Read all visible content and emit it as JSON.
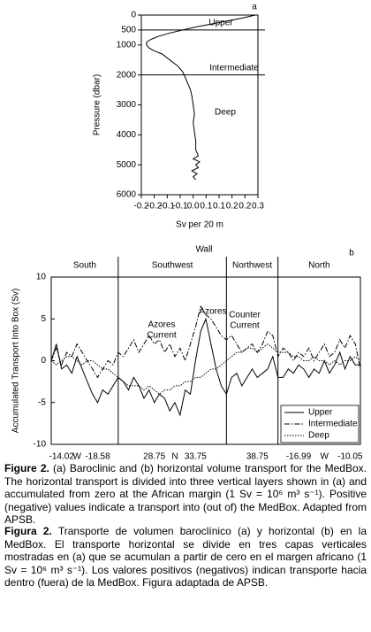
{
  "chart_data": [
    {
      "type": "profile",
      "panel": "a",
      "ylabel": "Pressure (dbar)",
      "xlabel": "Sv per 20 m",
      "xlim": [
        -0.2,
        0.25
      ],
      "xticks": [
        {
          "value": -0.2,
          "label": "-0.2"
        },
        {
          "value": -0.15,
          "label": "-0.2"
        },
        {
          "value": -0.1,
          "label": "-0.1"
        },
        {
          "value": -0.05,
          "label": "-0.1"
        },
        {
          "value": 0,
          "label": "0.0"
        },
        {
          "value": 0.05,
          "label": "0.1"
        },
        {
          "value": 0.1,
          "label": "0.1"
        },
        {
          "value": 0.15,
          "label": "0.2"
        },
        {
          "value": 0.2,
          "label": "0.2"
        },
        {
          "value": 0.25,
          "label": "0.3"
        }
      ],
      "ylim": [
        0,
        6000
      ],
      "y_inverted": true,
      "yticks": [
        0,
        500,
        1000,
        2000,
        3000,
        4000,
        5000,
        6000
      ],
      "layers": [
        {
          "name": "Upper",
          "boundary": 500
        },
        {
          "name": "Intermediate",
          "boundary": 2000
        },
        {
          "name": "Deep"
        }
      ],
      "series": [
        {
          "color": "#000000",
          "pressure": [
            0,
            100,
            200,
            300,
            400,
            500,
            600,
            700,
            800,
            900,
            1000,
            1100,
            1200,
            1300,
            1500,
            1700,
            1900,
            2100,
            2300,
            2500,
            2700,
            3000,
            3300,
            3600,
            3900,
            4200,
            4500,
            4700,
            4800,
            4900,
            5000,
            5100,
            5200,
            5300,
            5400,
            5500
          ],
          "values": [
            0.24,
            0.19,
            0.13,
            0.07,
            0.01,
            -0.04,
            -0.09,
            -0.13,
            -0.16,
            -0.18,
            -0.18,
            -0.17,
            -0.15,
            -0.12,
            -0.09,
            -0.06,
            -0.04,
            -0.03,
            -0.02,
            -0.01,
            -0.005,
            0,
            0.005,
            0,
            0.005,
            0.01,
            0.01,
            0.02,
            0,
            0.025,
            0.01,
            0.02,
            -0.005,
            0.015,
            0,
            0.01
          ]
        }
      ]
    },
    {
      "type": "line",
      "panel": "b",
      "title": "Wall",
      "walls": [
        "South",
        "Southwest",
        "Northwest",
        "North"
      ],
      "ylabel": "Accumulated Transport Into Box (Sv)",
      "ylim": [
        -10,
        10
      ],
      "yticks": [
        -10,
        -5,
        0,
        5,
        10
      ],
      "categories": [
        null,
        null,
        "-14.02",
        null,
        null,
        "W",
        null,
        null,
        null,
        "-18.58",
        null,
        null,
        null,
        null,
        null,
        null,
        null,
        null,
        null,
        null,
        "28.75",
        null,
        null,
        null,
        "N",
        null,
        null,
        null,
        "33.75",
        null,
        null,
        null,
        null,
        null,
        null,
        null,
        null,
        null,
        null,
        null,
        "38.75",
        null,
        null,
        null,
        null,
        null,
        null,
        null,
        "-16.99",
        null,
        null,
        null,
        null,
        "W",
        null,
        null,
        null,
        null,
        "-10.05",
        null,
        null
      ],
      "annotations": [
        {
          "lines": [
            "Azores",
            "Current"
          ]
        },
        {
          "lines": [
            "Azores"
          ]
        },
        {
          "lines": [
            "Counter",
            "Current"
          ]
        }
      ],
      "legend": "lower right",
      "series": [
        {
          "name": "Upper",
          "color": "#000000",
          "line_style": "solid",
          "values": [
            0,
            2,
            -1,
            -0.5,
            -1.5,
            0.5,
            -1,
            -2.5,
            -4,
            -5,
            -3.5,
            -4,
            -3,
            -2,
            -2.5,
            -3.5,
            -2,
            -3,
            -4.5,
            -3.5,
            -5,
            -4,
            -4.5,
            -6,
            -5,
            -6.5,
            -3.5,
            -4,
            0,
            3.5,
            5,
            2,
            -1,
            -3,
            -4,
            -2,
            -1.5,
            -3,
            -2,
            -1,
            -2,
            -1.5,
            -1,
            0.5,
            -2,
            -2,
            -1,
            -1.5,
            -0.5,
            -1,
            -2,
            -1,
            -1.5,
            0,
            -1.5,
            -0.5,
            1,
            -1,
            0.5,
            -0.5,
            -0.5
          ]
        },
        {
          "name": "Intermediate",
          "color": "#000000",
          "line_style": "dashdot",
          "values": [
            0,
            1.5,
            -0.5,
            1,
            0.5,
            2,
            1,
            0,
            -1,
            -2,
            -1,
            0,
            -0.5,
            1,
            0.5,
            1.5,
            2.5,
            1,
            2,
            3,
            2,
            2.5,
            1,
            2,
            0.5,
            1.5,
            0,
            2,
            4,
            6.5,
            5.5,
            5,
            4,
            3,
            2.5,
            3,
            2,
            1,
            1.5,
            2,
            1,
            2,
            3.5,
            3,
            0.5,
            1.5,
            1,
            0,
            1,
            0.5,
            1.5,
            0,
            1,
            2,
            0.5,
            1,
            2.5,
            1.5,
            3,
            2,
            -1
          ]
        },
        {
          "name": "Deep",
          "color": "#000000",
          "line_style": "dotted",
          "values": [
            0,
            -0.5,
            0,
            0.5,
            0.5,
            0,
            -0.5,
            0,
            0,
            -0.5,
            -1,
            -1,
            -1.5,
            -2,
            -2.5,
            -3,
            -3,
            -3,
            -3.5,
            -3,
            -3.5,
            -4,
            -3.5,
            -3.5,
            -3,
            -3,
            -2.5,
            -2.5,
            -2,
            -2,
            -1.5,
            -1,
            -1,
            -0.5,
            0,
            0.5,
            1,
            1,
            1.5,
            1.5,
            1,
            1.5,
            2,
            1.5,
            1,
            1,
            1,
            0.5,
            0.5,
            0,
            0,
            0.5,
            0,
            0,
            -0.5,
            0,
            -0.5,
            0,
            0,
            0.5,
            0
          ]
        }
      ]
    }
  ],
  "caption": {
    "en": {
      "label": "Figure 2.",
      "text": "(a) Baroclinic and (b) horizontal volume transport for the MedBox. The horizontal transport is divided into three vertical layers shown in (a) and accumulated from zero at the African margin (1 Sv = 10⁶ m³ s⁻¹). Positive (negative) values indicate a transport into (out of) the MedBox. Adapted from APSB."
    },
    "es": {
      "label": "Figura 2.",
      "text": "Transporte de volumen baroclínico (a) y horizontal (b) en la MedBox. El transporte horizontal se divide en tres capas verticales mostradas en (a) que se acumulan a partir de cero en el margen africano (1 Sv = 10⁶ m³ s⁻¹). Los valores positivos (negativos) indican transporte hacia dentro (fuera) de la MedBox. Figura adaptada de APSB."
    }
  }
}
